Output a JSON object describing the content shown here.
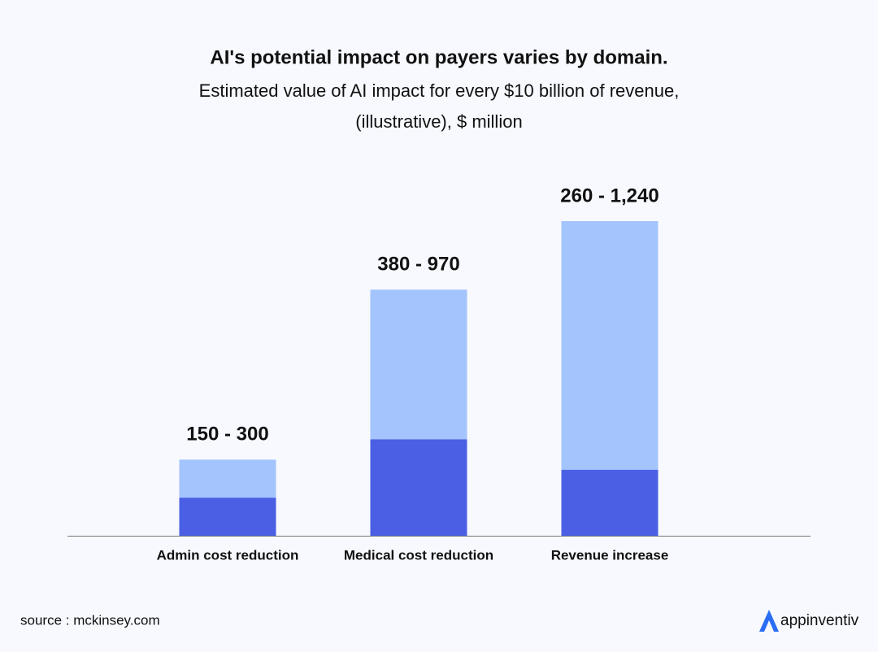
{
  "chart_data": {
    "type": "range-bar",
    "title": "AI's potential impact on payers varies by domain.",
    "subtitle": [
      "Estimated value of AI impact for every $10 billion of revenue,",
      "(illustrative), $ million"
    ],
    "categories": [
      "Admin cost reduction",
      "Medical cost reduction",
      "Revenue increase"
    ],
    "low": [
      150,
      380,
      260
    ],
    "high": [
      300,
      970,
      1240
    ],
    "value_labels": [
      "150 - 300",
      "380 - 970",
      "260 - 1,240"
    ],
    "low_color": "#4a5fe3",
    "high_color": "#a3c4fd"
  },
  "source": "source : mckinsey.com",
  "brand": "appinventiv"
}
